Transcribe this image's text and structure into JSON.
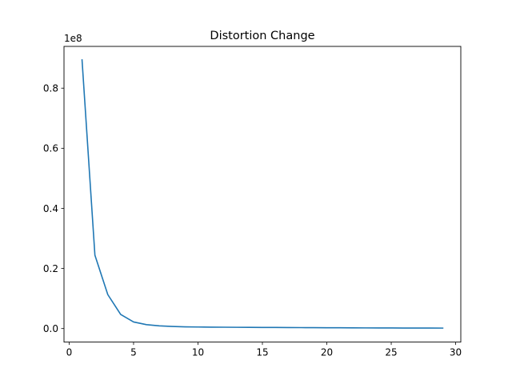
{
  "chart_data": {
    "type": "line",
    "title": "Distortion Change",
    "xlabel": "",
    "ylabel": "",
    "y_offset_label": "1e8",
    "y_scale_factor": 100000000,
    "xlim": [
      -0.4,
      30.4
    ],
    "ylim": [
      -4500000,
      93900000
    ],
    "x_ticks": [
      0,
      5,
      10,
      15,
      20,
      25,
      30
    ],
    "y_ticks": [
      0.0,
      0.2,
      0.4,
      0.6,
      0.8
    ],
    "grid": false,
    "legend": "none",
    "series": [
      {
        "color": "#1f77b4",
        "x": [
          1,
          2,
          3,
          4,
          5,
          6,
          7,
          8,
          9,
          10,
          11,
          12,
          13,
          14,
          15,
          16,
          17,
          18,
          19,
          20,
          21,
          22,
          23,
          24,
          25,
          26,
          27,
          28,
          29
        ],
        "y": [
          89400000,
          24400000,
          11300000,
          4700000,
          2200000,
          1300000,
          900000,
          700000,
          580000,
          520000,
          480000,
          450000,
          420000,
          400000,
          380000,
          360000,
          340000,
          320000,
          300000,
          280000,
          260000,
          240000,
          220000,
          200000,
          190000,
          180000,
          170000,
          160000,
          150000
        ]
      }
    ]
  }
}
